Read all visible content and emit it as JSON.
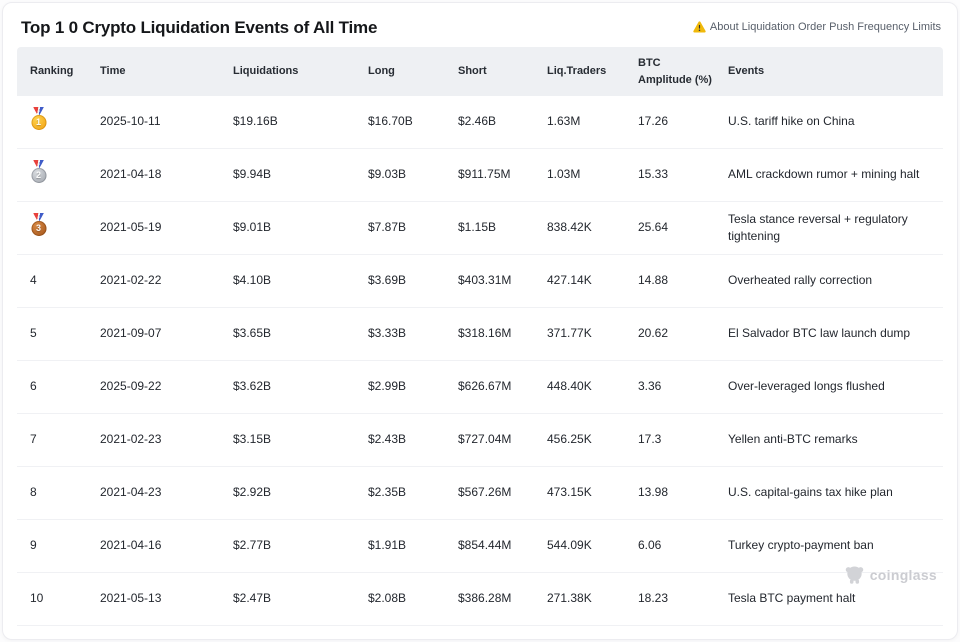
{
  "page": {
    "title": "Top 1 0 Crypto Liquidation Events of All Time",
    "notice_link": "About Liquidation Order Push Frequency Limits",
    "watermark": "coinglass"
  },
  "colors": {
    "warning_yellow": "#f0b90b",
    "header_bg": "#eef0f3",
    "row_divider": "#f0f1f4",
    "body_text": "#23272e",
    "notice_text": "#585f6a",
    "medal_gold": "#f0a50e",
    "medal_silver": "#a9aeb6",
    "medal_bronze": "#ad5c1f",
    "watermark_gray": "#cbccd1"
  },
  "table": {
    "columns": [
      "Ranking",
      "Time",
      "Liquidations",
      "Long",
      "Short",
      "Liq.Traders",
      "BTC Amplitude (%)",
      "Events"
    ],
    "rows": [
      {
        "ranking": "1",
        "medal": "gold",
        "time": "2025-10-11",
        "liquidations": "$19.16B",
        "long": "$16.70B",
        "short": "$2.46B",
        "liq_traders": "1.63M",
        "btc_amplitude": "17.26",
        "events": "U.S. tariff hike on China"
      },
      {
        "ranking": "2",
        "medal": "silver",
        "time": "2021-04-18",
        "liquidations": "$9.94B",
        "long": "$9.03B",
        "short": "$911.75M",
        "liq_traders": "1.03M",
        "btc_amplitude": "15.33",
        "events": "AML crackdown rumor + mining halt"
      },
      {
        "ranking": "3",
        "medal": "bronze",
        "time": "2021-05-19",
        "liquidations": "$9.01B",
        "long": "$7.87B",
        "short": "$1.15B",
        "liq_traders": "838.42K",
        "btc_amplitude": "25.64",
        "events": "Tesla stance reversal + regulatory tightening"
      },
      {
        "ranking": "4",
        "medal": "",
        "time": "2021-02-22",
        "liquidations": "$4.10B",
        "long": "$3.69B",
        "short": "$403.31M",
        "liq_traders": "427.14K",
        "btc_amplitude": "14.88",
        "events": "Overheated rally correction"
      },
      {
        "ranking": "5",
        "medal": "",
        "time": "2021-09-07",
        "liquidations": "$3.65B",
        "long": "$3.33B",
        "short": "$318.16M",
        "liq_traders": "371.77K",
        "btc_amplitude": "20.62",
        "events": "El Salvador BTC law launch dump"
      },
      {
        "ranking": "6",
        "medal": "",
        "time": "2025-09-22",
        "liquidations": "$3.62B",
        "long": "$2.99B",
        "short": "$626.67M",
        "liq_traders": "448.40K",
        "btc_amplitude": "3.36",
        "events": "Over-leveraged longs flushed"
      },
      {
        "ranking": "7",
        "medal": "",
        "time": "2021-02-23",
        "liquidations": "$3.15B",
        "long": "$2.43B",
        "short": "$727.04M",
        "liq_traders": "456.25K",
        "btc_amplitude": "17.3",
        "events": "Yellen anti-BTC remarks"
      },
      {
        "ranking": "8",
        "medal": "",
        "time": "2021-04-23",
        "liquidations": "$2.92B",
        "long": "$2.35B",
        "short": "$567.26M",
        "liq_traders": "473.15K",
        "btc_amplitude": "13.98",
        "events": "U.S. capital-gains tax hike plan"
      },
      {
        "ranking": "9",
        "medal": "",
        "time": "2021-04-16",
        "liquidations": "$2.77B",
        "long": "$1.91B",
        "short": "$854.44M",
        "liq_traders": "544.09K",
        "btc_amplitude": "6.06",
        "events": "Turkey crypto-payment ban"
      },
      {
        "ranking": "10",
        "medal": "",
        "time": "2021-05-13",
        "liquidations": "$2.47B",
        "long": "$2.08B",
        "short": "$386.28M",
        "liq_traders": "271.38K",
        "btc_amplitude": "18.23",
        "events": "Tesla BTC payment halt"
      }
    ]
  }
}
